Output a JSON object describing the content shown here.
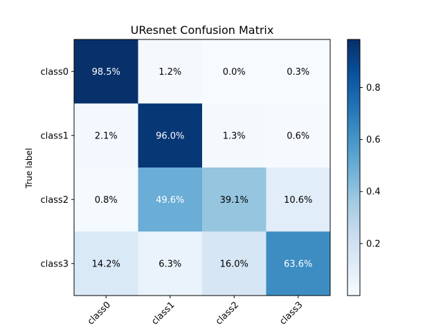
{
  "chart_data": {
    "type": "heatmap",
    "title": "UResnet Confusion Matrix",
    "ylabel": "True label",
    "xlabel": "",
    "x_categories": [
      "class0",
      "class1",
      "class2",
      "class3"
    ],
    "y_categories": [
      "class0",
      "class1",
      "class2",
      "class3"
    ],
    "values": [
      [
        0.985,
        0.012,
        0.0,
        0.003
      ],
      [
        0.021,
        0.96,
        0.013,
        0.006
      ],
      [
        0.008,
        0.496,
        0.391,
        0.106
      ],
      [
        0.142,
        0.063,
        0.16,
        0.636
      ]
    ],
    "cell_labels": [
      [
        "98.5%",
        "1.2%",
        "0.0%",
        "0.3%"
      ],
      [
        "2.1%",
        "96.0%",
        "1.3%",
        "0.6%"
      ],
      [
        "0.8%",
        "49.6%",
        "39.1%",
        "10.6%"
      ],
      [
        "14.2%",
        "6.3%",
        "16.0%",
        "63.6%"
      ]
    ],
    "colormap": "Blues",
    "colorbar": {
      "range": [
        0.0,
        0.985
      ],
      "ticks": [
        0.2,
        0.4,
        0.6,
        0.8
      ],
      "tick_labels": [
        "0.2",
        "0.4",
        "0.6",
        "0.8"
      ]
    },
    "x_tick_rotation_deg": 45,
    "grid": false
  }
}
